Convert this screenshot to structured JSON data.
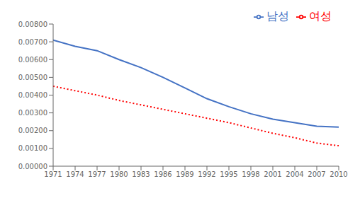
{
  "chart_data": {
    "type": "line",
    "x": [
      1971,
      1974,
      1977,
      1980,
      1983,
      1986,
      1989,
      1992,
      1995,
      1998,
      2001,
      2004,
      2007,
      2010
    ],
    "series": [
      {
        "name": "남성",
        "color": "#4472C4",
        "line_style": "solid",
        "values": [
          0.0071,
          0.00675,
          0.0065,
          0.006,
          0.00555,
          0.005,
          0.0044,
          0.0038,
          0.00335,
          0.00295,
          0.00265,
          0.00245,
          0.00225,
          0.0022
        ]
      },
      {
        "name": "여성",
        "color": "#FF0000",
        "line_style": "dotted",
        "values": [
          0.0045,
          0.00425,
          0.004,
          0.0037,
          0.00345,
          0.0032,
          0.00295,
          0.0027,
          0.00245,
          0.00215,
          0.00185,
          0.0016,
          0.0013,
          0.00115
        ]
      }
    ],
    "xlim": [
      1971,
      2010
    ],
    "xticks": [
      1971,
      1974,
      1977,
      1980,
      1983,
      1986,
      1989,
      1992,
      1995,
      1998,
      2001,
      2004,
      2007,
      2010
    ],
    "ylim": [
      0.0,
      0.008
    ],
    "yticks": [
      {
        "value": 0.0,
        "label": "0.00000"
      },
      {
        "value": 0.001,
        "label": "0.00100"
      },
      {
        "value": 0.002,
        "label": "0.00200"
      },
      {
        "value": 0.003,
        "label": "0.00300"
      },
      {
        "value": 0.004,
        "label": "0.00400"
      },
      {
        "value": 0.005,
        "label": "0.00500"
      },
      {
        "value": 0.006,
        "label": "0.00600"
      },
      {
        "value": 0.007,
        "label": "0.00700"
      },
      {
        "value": 0.008,
        "label": "0.00800"
      }
    ],
    "grid": false,
    "legend": "upper right"
  }
}
